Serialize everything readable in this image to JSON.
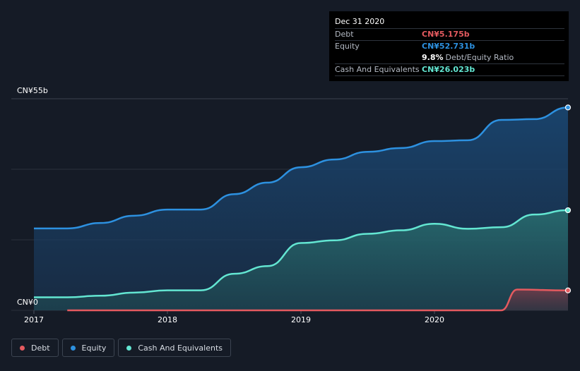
{
  "colors": {
    "debt": "#e45a5f",
    "equity": "#2d91e0",
    "cash": "#63e6d2",
    "grid": "#2a313c",
    "axis_text": "#ffffff"
  },
  "tooltip": {
    "date": "Dec 31 2020",
    "debt_label": "Debt",
    "debt_value": "CN¥5.175b",
    "equity_label": "Equity",
    "equity_value": "CN¥52.731b",
    "ratio_value": "9.8%",
    "ratio_label": "Debt/Equity Ratio",
    "cash_label": "Cash And Equivalents",
    "cash_value": "CN¥26.023b"
  },
  "legend": [
    {
      "label": "Debt",
      "color_key": "debt"
    },
    {
      "label": "Equity",
      "color_key": "equity"
    },
    {
      "label": "Cash And Equivalents",
      "color_key": "cash"
    }
  ],
  "chart_data": {
    "type": "area",
    "title": "",
    "unit": "CN¥ billions",
    "y_labels": {
      "top": "CN¥55b",
      "bottom": "CN¥0"
    },
    "ylim": [
      0,
      55
    ],
    "xlim": [
      2017.0,
      2021.0
    ],
    "x_ticks": [
      {
        "value": 2017.0,
        "label": "2017"
      },
      {
        "value": 2018.0,
        "label": "2018"
      },
      {
        "value": 2019.0,
        "label": "2019"
      },
      {
        "value": 2020.0,
        "label": "2020"
      }
    ],
    "series": [
      {
        "name": "Equity",
        "color_key": "equity",
        "points": [
          [
            2017.0,
            21.3
          ],
          [
            2017.25,
            21.3
          ],
          [
            2017.5,
            22.7
          ],
          [
            2017.75,
            24.6
          ],
          [
            2018.0,
            26.2
          ],
          [
            2018.25,
            26.2
          ],
          [
            2018.5,
            30.2
          ],
          [
            2018.75,
            33.2
          ],
          [
            2019.0,
            37.2
          ],
          [
            2019.25,
            39.2
          ],
          [
            2019.5,
            41.2
          ],
          [
            2019.75,
            42.2
          ],
          [
            2020.0,
            44.0
          ],
          [
            2020.25,
            44.2
          ],
          [
            2020.5,
            49.5
          ],
          [
            2020.75,
            49.7
          ],
          [
            2021.0,
            52.731
          ]
        ]
      },
      {
        "name": "Cash And Equivalents",
        "color_key": "cash",
        "points": [
          [
            2017.0,
            3.4
          ],
          [
            2017.25,
            3.4
          ],
          [
            2017.5,
            3.8
          ],
          [
            2017.75,
            4.6
          ],
          [
            2018.0,
            5.2
          ],
          [
            2018.25,
            5.2
          ],
          [
            2018.5,
            9.5
          ],
          [
            2018.75,
            11.5
          ],
          [
            2019.0,
            17.5
          ],
          [
            2019.25,
            18.2
          ],
          [
            2019.5,
            19.9
          ],
          [
            2019.75,
            20.8
          ],
          [
            2020.0,
            22.5
          ],
          [
            2020.25,
            21.2
          ],
          [
            2020.5,
            21.6
          ],
          [
            2020.75,
            24.9
          ],
          [
            2021.0,
            26.023
          ]
        ]
      },
      {
        "name": "Debt",
        "color_key": "debt",
        "points": [
          [
            2017.25,
            0.0
          ],
          [
            2017.5,
            0.0
          ],
          [
            2017.75,
            0.0
          ],
          [
            2018.0,
            0.0
          ],
          [
            2018.25,
            0.0
          ],
          [
            2018.5,
            0.0
          ],
          [
            2018.75,
            0.0
          ],
          [
            2019.0,
            0.0
          ],
          [
            2019.25,
            0.0
          ],
          [
            2019.5,
            0.0
          ],
          [
            2019.75,
            0.0
          ],
          [
            2020.0,
            0.0
          ],
          [
            2020.25,
            0.0
          ],
          [
            2020.5,
            0.0
          ],
          [
            2020.62,
            5.4
          ],
          [
            2021.0,
            5.175
          ]
        ]
      }
    ]
  }
}
